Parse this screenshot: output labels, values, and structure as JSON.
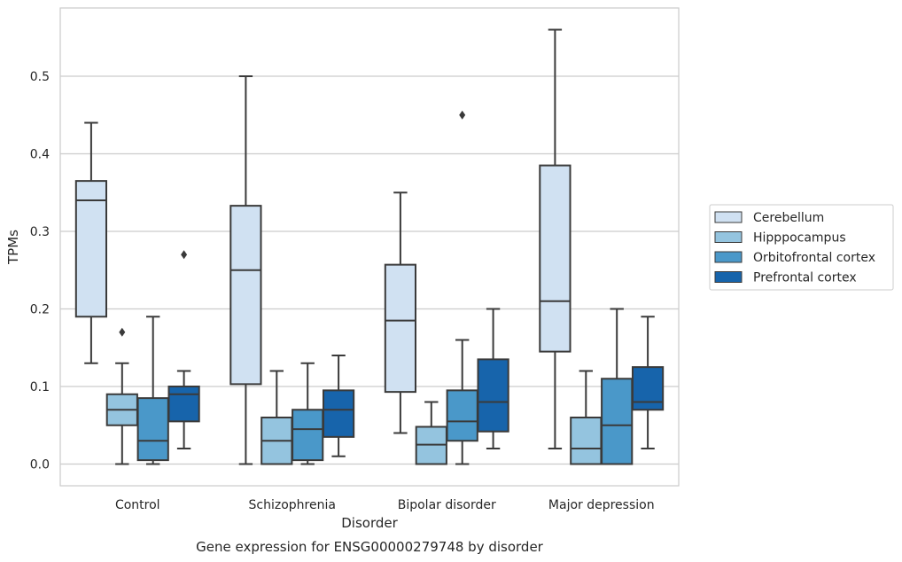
{
  "chart_data": {
    "type": "box",
    "title": "",
    "caption": "Gene expression for ENSG00000279748 by disorder",
    "xlabel": "Disorder",
    "ylabel": "TPMs",
    "ylim": [
      -0.028,
      0.588
    ],
    "yticks": [
      0.0,
      0.1,
      0.2,
      0.3,
      0.4,
      0.5
    ],
    "ytick_labels": [
      "0.0",
      "0.1",
      "0.2",
      "0.3",
      "0.4",
      "0.5"
    ],
    "categories": [
      "Control",
      "Schizophrenia",
      "Bipolar disorder",
      "Major depression"
    ],
    "grid": "horizontal",
    "legend_position": "right",
    "series": [
      {
        "name": "Cerebellum",
        "color": "#d0e1f2",
        "boxes": [
          {
            "whislo": 0.13,
            "q1": 0.19,
            "med": 0.34,
            "q3": 0.365,
            "whishi": 0.44,
            "fliers": []
          },
          {
            "whislo": 0.0,
            "q1": 0.103,
            "med": 0.25,
            "q3": 0.333,
            "whishi": 0.5,
            "fliers": []
          },
          {
            "whislo": 0.04,
            "q1": 0.093,
            "med": 0.185,
            "q3": 0.257,
            "whishi": 0.35,
            "fliers": []
          },
          {
            "whislo": 0.02,
            "q1": 0.145,
            "med": 0.21,
            "q3": 0.385,
            "whishi": 0.56,
            "fliers": []
          }
        ]
      },
      {
        "name": "Hipppocampus",
        "color": "#94c4df",
        "boxes": [
          {
            "whislo": 0.0,
            "q1": 0.05,
            "med": 0.07,
            "q3": 0.09,
            "whishi": 0.13,
            "fliers": [
              0.17
            ]
          },
          {
            "whislo": 0.0,
            "q1": 0.0,
            "med": 0.03,
            "q3": 0.06,
            "whishi": 0.12,
            "fliers": []
          },
          {
            "whislo": 0.0,
            "q1": 0.0,
            "med": 0.025,
            "q3": 0.048,
            "whishi": 0.08,
            "fliers": []
          },
          {
            "whislo": 0.0,
            "q1": 0.0,
            "med": 0.02,
            "q3": 0.06,
            "whishi": 0.12,
            "fliers": []
          }
        ]
      },
      {
        "name": "Orbitofrontal cortex",
        "color": "#4a98c9",
        "boxes": [
          {
            "whislo": 0.0,
            "q1": 0.005,
            "med": 0.03,
            "q3": 0.085,
            "whishi": 0.19,
            "fliers": []
          },
          {
            "whislo": 0.0,
            "q1": 0.005,
            "med": 0.045,
            "q3": 0.07,
            "whishi": 0.13,
            "fliers": []
          },
          {
            "whislo": 0.0,
            "q1": 0.03,
            "med": 0.055,
            "q3": 0.095,
            "whishi": 0.16,
            "fliers": [
              0.45
            ]
          },
          {
            "whislo": 0.0,
            "q1": 0.0,
            "med": 0.05,
            "q3": 0.11,
            "whishi": 0.2,
            "fliers": []
          }
        ]
      },
      {
        "name": "Prefrontal cortex",
        "color": "#1764ab",
        "boxes": [
          {
            "whislo": 0.02,
            "q1": 0.055,
            "med": 0.09,
            "q3": 0.1,
            "whishi": 0.12,
            "fliers": [
              0.27
            ]
          },
          {
            "whislo": 0.01,
            "q1": 0.035,
            "med": 0.07,
            "q3": 0.095,
            "whishi": 0.14,
            "fliers": []
          },
          {
            "whislo": 0.02,
            "q1": 0.042,
            "med": 0.08,
            "q3": 0.135,
            "whishi": 0.2,
            "fliers": []
          },
          {
            "whislo": 0.02,
            "q1": 0.07,
            "med": 0.08,
            "q3": 0.125,
            "whishi": 0.19,
            "fliers": []
          }
        ]
      }
    ]
  }
}
